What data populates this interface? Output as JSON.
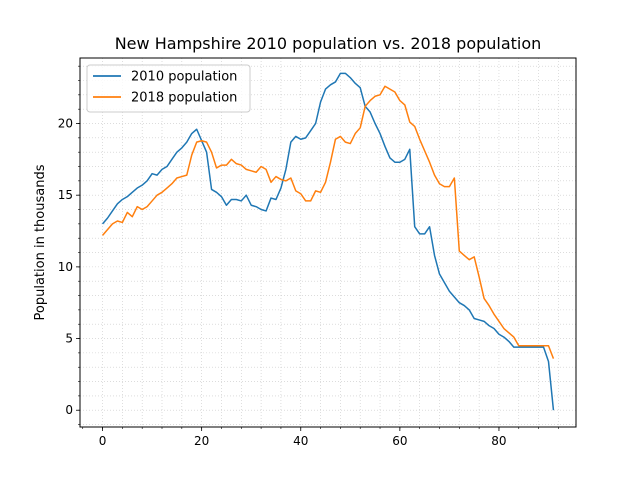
{
  "chart_data": {
    "type": "line",
    "title": "New Hampshire 2010 population vs. 2018 population",
    "xlabel": "",
    "ylabel": "Population in thousands",
    "xlim": [
      -4.55,
      95.55
    ],
    "ylim": [
      -1.17,
      24.57
    ],
    "xticks": [
      0,
      20,
      40,
      60,
      80
    ],
    "yticks": [
      0,
      5,
      10,
      15,
      20
    ],
    "grid": "minor dotted",
    "legend_position": "top-left",
    "series": [
      {
        "name": "2010 population",
        "color": "#1f77b4",
        "x": [
          0,
          1,
          2,
          3,
          4,
          5,
          6,
          7,
          8,
          9,
          10,
          11,
          12,
          13,
          14,
          15,
          16,
          17,
          18,
          19,
          20,
          21,
          22,
          23,
          24,
          25,
          26,
          27,
          28,
          29,
          30,
          31,
          32,
          33,
          34,
          35,
          36,
          37,
          38,
          39,
          40,
          41,
          42,
          43,
          44,
          45,
          46,
          47,
          48,
          49,
          50,
          51,
          52,
          53,
          54,
          55,
          56,
          57,
          58,
          59,
          60,
          61,
          62,
          63,
          64,
          65,
          66,
          67,
          68,
          69,
          70,
          71,
          72,
          73,
          74,
          75,
          76,
          77,
          78,
          79,
          80,
          81,
          82,
          83,
          84,
          85,
          86,
          87,
          88,
          89,
          90,
          91
        ],
        "values": [
          13.0,
          13.4,
          13.9,
          14.4,
          14.7,
          14.9,
          15.2,
          15.5,
          15.7,
          16.0,
          16.5,
          16.4,
          16.8,
          17.0,
          17.5,
          18.0,
          18.3,
          18.7,
          19.3,
          19.6,
          18.8,
          18.0,
          15.4,
          15.2,
          14.9,
          14.3,
          14.7,
          14.7,
          14.6,
          15.0,
          14.3,
          14.2,
          14.0,
          13.9,
          14.8,
          14.7,
          15.5,
          16.8,
          18.7,
          19.1,
          18.9,
          19.0,
          19.5,
          20.0,
          21.5,
          22.4,
          22.7,
          22.9,
          23.5,
          23.5,
          23.2,
          22.8,
          22.5,
          21.2,
          20.8,
          20.0,
          19.3,
          18.4,
          17.6,
          17.3,
          17.3,
          17.5,
          18.2,
          12.8,
          12.3,
          12.3,
          12.8,
          10.8,
          9.5,
          8.9,
          8.3,
          7.9,
          7.5,
          7.3,
          7.0,
          6.4,
          6.3,
          6.2,
          5.9,
          5.7,
          5.3,
          5.1,
          4.8,
          4.4,
          4.4,
          4.4,
          4.4,
          4.4,
          4.4,
          4.4,
          3.4,
          0.0
        ]
      },
      {
        "name": "2018 population",
        "color": "#ff7f0e",
        "x": [
          0,
          1,
          2,
          3,
          4,
          5,
          6,
          7,
          8,
          9,
          10,
          11,
          12,
          13,
          14,
          15,
          16,
          17,
          18,
          19,
          20,
          21,
          22,
          23,
          24,
          25,
          26,
          27,
          28,
          29,
          30,
          31,
          32,
          33,
          34,
          35,
          36,
          37,
          38,
          39,
          40,
          41,
          42,
          43,
          44,
          45,
          46,
          47,
          48,
          49,
          50,
          51,
          52,
          53,
          54,
          55,
          56,
          57,
          58,
          59,
          60,
          61,
          62,
          63,
          64,
          65,
          66,
          67,
          68,
          69,
          70,
          71,
          72,
          73,
          74,
          75,
          76,
          77,
          78,
          79,
          80,
          81,
          82,
          83,
          84,
          85,
          86,
          87,
          88,
          89,
          90,
          91
        ],
        "values": [
          12.2,
          12.6,
          13.0,
          13.2,
          13.1,
          13.8,
          13.5,
          14.2,
          14.0,
          14.2,
          14.6,
          15.0,
          15.2,
          15.5,
          15.8,
          16.2,
          16.3,
          16.4,
          17.8,
          18.7,
          18.8,
          18.7,
          18.0,
          16.9,
          17.1,
          17.1,
          17.5,
          17.2,
          17.1,
          16.8,
          16.7,
          16.6,
          17.0,
          16.8,
          15.9,
          16.3,
          16.1,
          16.0,
          16.2,
          15.3,
          15.1,
          14.6,
          14.6,
          15.3,
          15.2,
          15.9,
          17.3,
          18.9,
          19.1,
          18.7,
          18.6,
          19.3,
          19.7,
          21.2,
          21.6,
          21.9,
          22.0,
          22.6,
          22.4,
          22.2,
          21.6,
          21.3,
          20.1,
          19.8,
          18.9,
          18.1,
          17.3,
          16.4,
          15.8,
          15.6,
          15.6,
          16.2,
          11.1,
          10.8,
          10.5,
          10.7,
          9.3,
          7.8,
          7.3,
          6.7,
          6.2,
          5.7,
          5.4,
          5.1,
          4.5,
          4.5,
          4.5,
          4.5,
          4.5,
          4.5,
          4.5,
          3.6
        ]
      }
    ]
  }
}
